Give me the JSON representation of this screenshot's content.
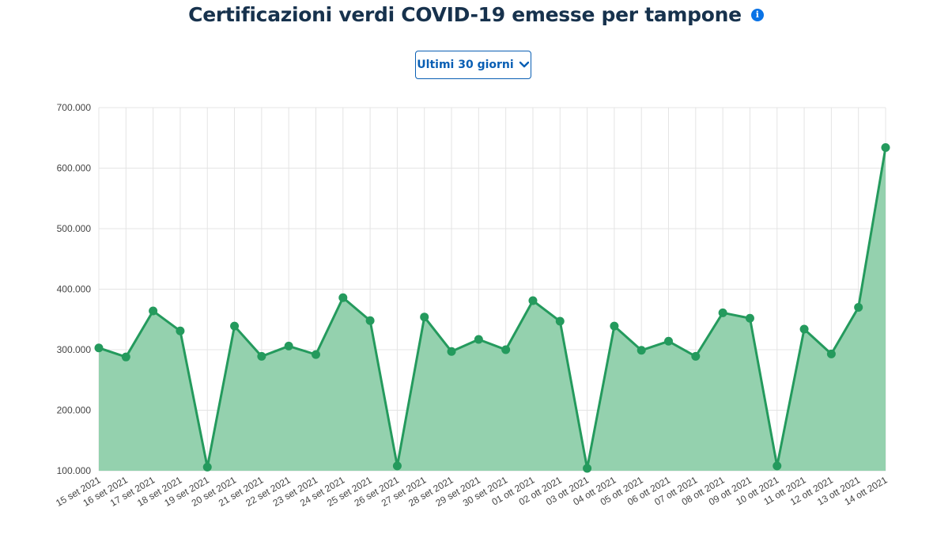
{
  "header": {
    "title": "Certificazioni verdi COVID-19 emesse per tampone",
    "info_icon": "info-icon"
  },
  "period_select": {
    "selected": "Ultimi 30 giorni",
    "icon": "chevron-down-icon"
  },
  "colors": {
    "line": "#249a5d",
    "area": "#94d1ae",
    "grid": "#e4e4e4",
    "title": "#17324d",
    "accent": "#0a5fb4"
  },
  "chart_data": {
    "type": "area",
    "title": "Certificazioni verdi COVID-19 emesse per tampone",
    "xlabel": "",
    "ylabel": "",
    "ylim": [
      100000,
      700000
    ],
    "yticks": [
      100000,
      200000,
      300000,
      400000,
      500000,
      600000,
      700000
    ],
    "ytick_labels": [
      "100.000",
      "200.000",
      "300.000",
      "400.000",
      "500.000",
      "600.000",
      "700.000"
    ],
    "grid": true,
    "categories": [
      "15 set 2021",
      "16 set 2021",
      "17 set 2021",
      "18 set 2021",
      "19 set 2021",
      "20 set 2021",
      "21 set 2021",
      "22 set 2021",
      "23 set 2021",
      "24 set 2021",
      "25 set 2021",
      "26 set 2021",
      "27 set 2021",
      "28 set 2021",
      "29 set 2021",
      "30 set 2021",
      "01 ott 2021",
      "02 ott 2021",
      "03 ott 2021",
      "04 ott 2021",
      "05 ott 2021",
      "06 ott 2021",
      "07 ott 2021",
      "08 ott 2021",
      "09 ott 2021",
      "10 ott 2021",
      "11 ott 2021",
      "12 ott 2021",
      "13 ott 2021",
      "14 ott 2021"
    ],
    "series": [
      {
        "values": [
          303000,
          288000,
          364000,
          331000,
          106000,
          339000,
          289000,
          306000,
          292000,
          386000,
          348000,
          108000,
          354000,
          297000,
          317000,
          300000,
          381000,
          347000,
          104000,
          339000,
          299000,
          314000,
          289000,
          361000,
          352000,
          108000,
          334000,
          293000,
          370000,
          634000
        ]
      }
    ]
  }
}
